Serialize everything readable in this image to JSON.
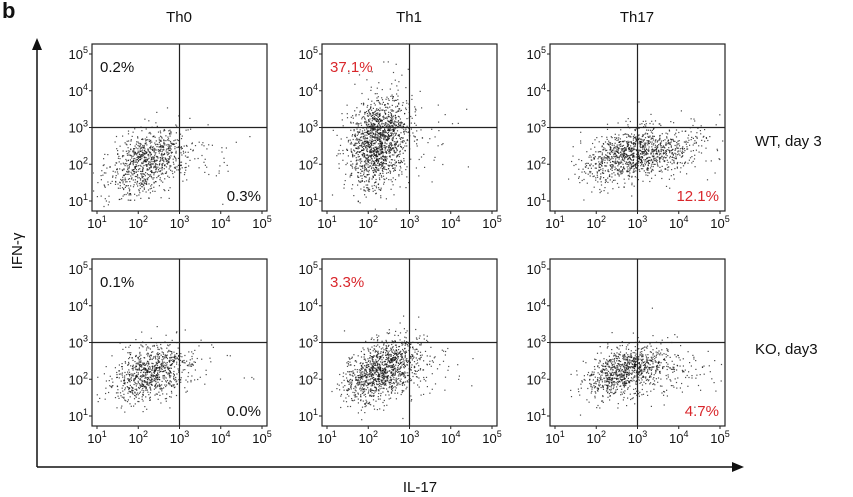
{
  "figure": {
    "panel_label": "b",
    "x_axis_title": "IL-17",
    "y_axis_title": "IFN-γ",
    "columns": [
      "Th0",
      "Th1",
      "Th17"
    ],
    "rows": [
      "WT, day 3",
      "KO, day3"
    ],
    "tick_base": "10",
    "tick_exponents": [
      "1",
      "2",
      "3",
      "4",
      "5"
    ],
    "colors": {
      "black": "#111111",
      "red": "#d9262b"
    }
  },
  "chart_data": {
    "type": "scatter",
    "subtype": "flow-cytometry-dotplot-grid",
    "xlabel": "IL-17",
    "ylabel": "IFN-γ",
    "scale": "log",
    "xlim": [
      10,
      100000
    ],
    "ylim": [
      10,
      100000
    ],
    "panels": [
      {
        "row": "WT, day 3",
        "column": "Th0",
        "quadrant_labels": [
          {
            "quadrant": "top-left",
            "text": "0.2%",
            "color": "black"
          },
          {
            "quadrant": "bottom-right",
            "text": "0.3%",
            "color": "black"
          }
        ],
        "cloud": {
          "center": [
            150,
            120
          ],
          "spread": [
            0.75,
            0.7
          ],
          "density": 900,
          "tail_x": 0.15
        }
      },
      {
        "row": "WT, day 3",
        "column": "Th1",
        "quadrant_labels": [
          {
            "quadrant": "top-left",
            "text": "37.1%",
            "color": "red"
          }
        ],
        "cloud": {
          "center": [
            170,
            400
          ],
          "spread": [
            0.6,
            1.0
          ],
          "density": 1500,
          "tail_x": 0.05
        }
      },
      {
        "row": "WT, day 3",
        "column": "Th17",
        "quadrant_labels": [
          {
            "quadrant": "bottom-right",
            "text": "12.1%",
            "color": "red"
          }
        ],
        "cloud": {
          "center": [
            400,
            200
          ],
          "spread": [
            0.8,
            0.55
          ],
          "density": 1200,
          "tail_x": 0.6
        }
      },
      {
        "row": "KO, day3",
        "column": "Th0",
        "quadrant_labels": [
          {
            "quadrant": "top-left",
            "text": "0.1%",
            "color": "black"
          },
          {
            "quadrant": "bottom-right",
            "text": "0.0%",
            "color": "black"
          }
        ],
        "cloud": {
          "center": [
            180,
            150
          ],
          "spread": [
            0.75,
            0.6
          ],
          "density": 850,
          "tail_x": 0.1
        }
      },
      {
        "row": "KO, day3",
        "column": "Th1",
        "quadrant_labels": [
          {
            "quadrant": "top-left",
            "text": "3.3%",
            "color": "red"
          }
        ],
        "cloud": {
          "center": [
            200,
            180
          ],
          "spread": [
            0.75,
            0.65
          ],
          "density": 1200,
          "tail_x": 0.1
        }
      },
      {
        "row": "KO, day3",
        "column": "Th17",
        "quadrant_labels": [
          {
            "quadrant": "bottom-right",
            "text": "4.7%",
            "color": "red"
          }
        ],
        "cloud": {
          "center": [
            350,
            180
          ],
          "spread": [
            0.7,
            0.55
          ],
          "density": 1000,
          "tail_x": 0.4
        }
      }
    ]
  }
}
